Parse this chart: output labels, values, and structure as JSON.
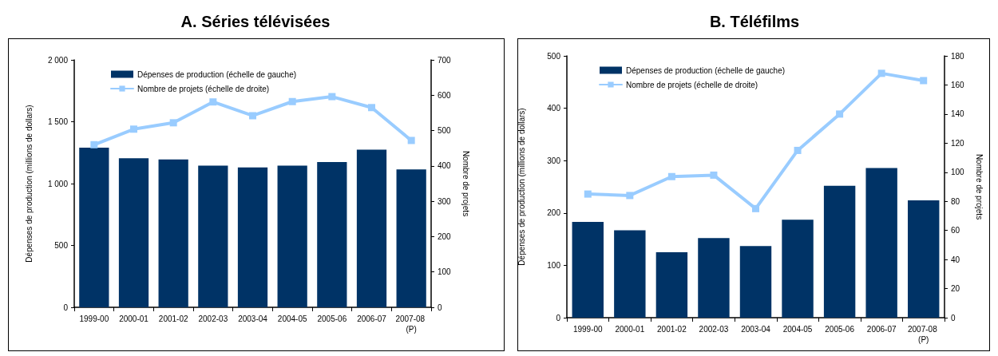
{
  "chart_data": [
    {
      "type": "bar",
      "title": "A. Séries télévisées",
      "ylabel": "Dépenses de production (millions de dollars)",
      "y2label": "Nombre de projets",
      "categories": [
        "1999-00",
        "2000-01",
        "2001-02",
        "2002-03",
        "2003-04",
        "2004-05",
        "2005-06",
        "2006-07",
        "2007-08 (P)"
      ],
      "series": [
        {
          "name": "Dépenses de production (échelle de gauche)",
          "color": "#003366",
          "values": [
            1290,
            1205,
            1195,
            1145,
            1130,
            1145,
            1175,
            1275,
            1115
          ]
        },
        {
          "name": "Nombre de projets (échelle de droite)",
          "type": "line",
          "axis": "y2",
          "color": "#99ccff",
          "values": [
            460,
            504,
            522,
            581,
            542,
            582,
            596,
            565,
            472
          ]
        }
      ],
      "ylim": [
        0,
        2000
      ],
      "yticks": [
        0,
        500,
        {
          "value": 1000,
          "label": "1 000"
        },
        {
          "value": 1500,
          "label": "1 500"
        },
        {
          "value": 2000,
          "label": "2 000"
        }
      ],
      "y2lim": [
        0,
        700
      ],
      "y2ticks": [
        0,
        100,
        200,
        300,
        400,
        500,
        600,
        700
      ],
      "marker": "square",
      "legend": "top left",
      "grid": false
    },
    {
      "type": "bar",
      "title": "B. Téléfilms",
      "ylabel": "Dépenses de production (millions de dollars)",
      "y2label": "Nombre de projets",
      "categories": [
        "1999-00",
        "2000-01",
        "2001-02",
        "2002-03",
        "2003-04",
        "2004-05",
        "2005-06",
        "2006-07",
        "2007-08 (P)"
      ],
      "series": [
        {
          "name": "Dépenses de production (échelle de gauche)",
          "color": "#003366",
          "values": [
            183,
            167,
            125,
            152,
            137,
            187,
            252,
            286,
            224
          ]
        },
        {
          "name": "Nombre de projets (échelle de droite)",
          "type": "line",
          "axis": "y2",
          "color": "#99ccff",
          "values": [
            85,
            84,
            97,
            98,
            75,
            115,
            140,
            168,
            163
          ]
        }
      ],
      "ylim": [
        0,
        500
      ],
      "yticks": [
        0,
        100,
        200,
        300,
        400,
        500
      ],
      "y2lim": [
        0,
        180
      ],
      "y2ticks": [
        0,
        20,
        40,
        60,
        80,
        100,
        120,
        140,
        160,
        180
      ],
      "marker": "square",
      "legend": "top left",
      "grid": false
    }
  ]
}
